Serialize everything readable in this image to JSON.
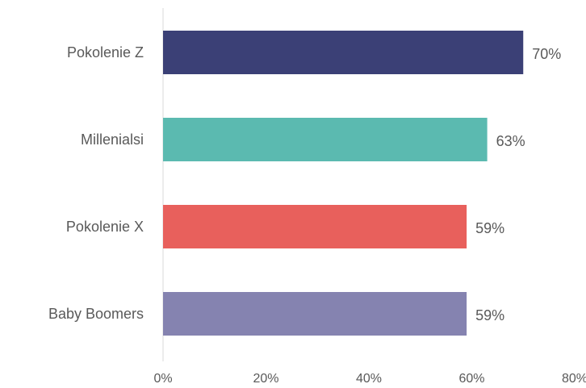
{
  "chart_data": {
    "type": "bar",
    "orientation": "horizontal",
    "title": "",
    "xlabel": "",
    "ylabel": "",
    "categories": [
      "Pokolenie Z",
      "Millenialsi",
      "Pokolenie X",
      "Baby Boomers"
    ],
    "values": [
      70,
      63,
      59,
      59
    ],
    "value_labels": [
      "70%",
      "63%",
      "59%",
      "59%"
    ],
    "colors": [
      "#3b4076",
      "#5bbab0",
      "#e8605c",
      "#8583b0"
    ],
    "xlim": [
      0,
      80
    ],
    "x_ticks": [
      0,
      20,
      40,
      60,
      80
    ],
    "x_tick_labels": [
      "0%",
      "20%",
      "40%",
      "60%",
      "80%"
    ],
    "grid": false,
    "legend": "none"
  }
}
